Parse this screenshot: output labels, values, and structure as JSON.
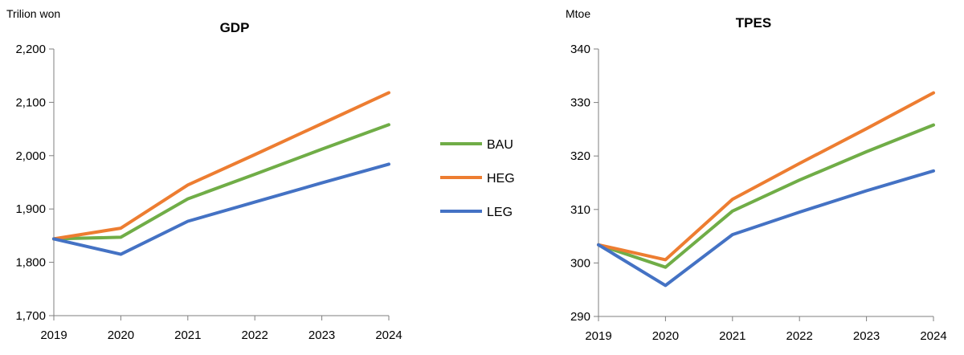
{
  "colors": {
    "BAU": "#70AD47",
    "HEG": "#ED7D31",
    "LEG": "#4472C4",
    "axis": "#7f7f7f"
  },
  "legend": {
    "items": [
      {
        "label": "BAU",
        "color": "#70AD47"
      },
      {
        "label": "HEG",
        "color": "#ED7D31"
      },
      {
        "label": "LEG",
        "color": "#4472C4"
      }
    ]
  },
  "chart_data": [
    {
      "type": "line",
      "title": "GDP",
      "ylabel": "Trilion won",
      "xlabel": "",
      "x": [
        "2019",
        "2020",
        "2021",
        "2022",
        "2023",
        "2024"
      ],
      "ylim": [
        1700,
        2200
      ],
      "yticks": [
        "1,700",
        "1,800",
        "1,900",
        "2,000",
        "2,100",
        "2,200"
      ],
      "grid": false,
      "series": [
        {
          "name": "BAU",
          "color": "#70AD47",
          "values": [
            1844,
            1847,
            1919,
            1965,
            2012,
            2058
          ]
        },
        {
          "name": "HEG",
          "color": "#ED7D31",
          "values": [
            1844,
            1864,
            1945,
            2002,
            2060,
            2118
          ]
        },
        {
          "name": "LEG",
          "color": "#4472C4",
          "values": [
            1844,
            1815,
            1877,
            1913,
            1949,
            1984
          ]
        }
      ]
    },
    {
      "type": "line",
      "title": "TPES",
      "ylabel": "Mtoe",
      "xlabel": "",
      "x": [
        "2019",
        "2020",
        "2021",
        "2022",
        "2023",
        "2024"
      ],
      "ylim": [
        290,
        340
      ],
      "yticks": [
        "290",
        "300",
        "310",
        "320",
        "330",
        "340"
      ],
      "grid": false,
      "series": [
        {
          "name": "BAU",
          "color": "#70AD47",
          "values": [
            303.4,
            299.2,
            309.7,
            315.5,
            320.8,
            325.8
          ]
        },
        {
          "name": "HEG",
          "color": "#ED7D31",
          "values": [
            303.4,
            300.6,
            311.9,
            318.6,
            325.1,
            331.8
          ]
        },
        {
          "name": "LEG",
          "color": "#4472C4",
          "values": [
            303.4,
            295.8,
            305.3,
            309.5,
            313.5,
            317.2
          ]
        }
      ]
    }
  ]
}
